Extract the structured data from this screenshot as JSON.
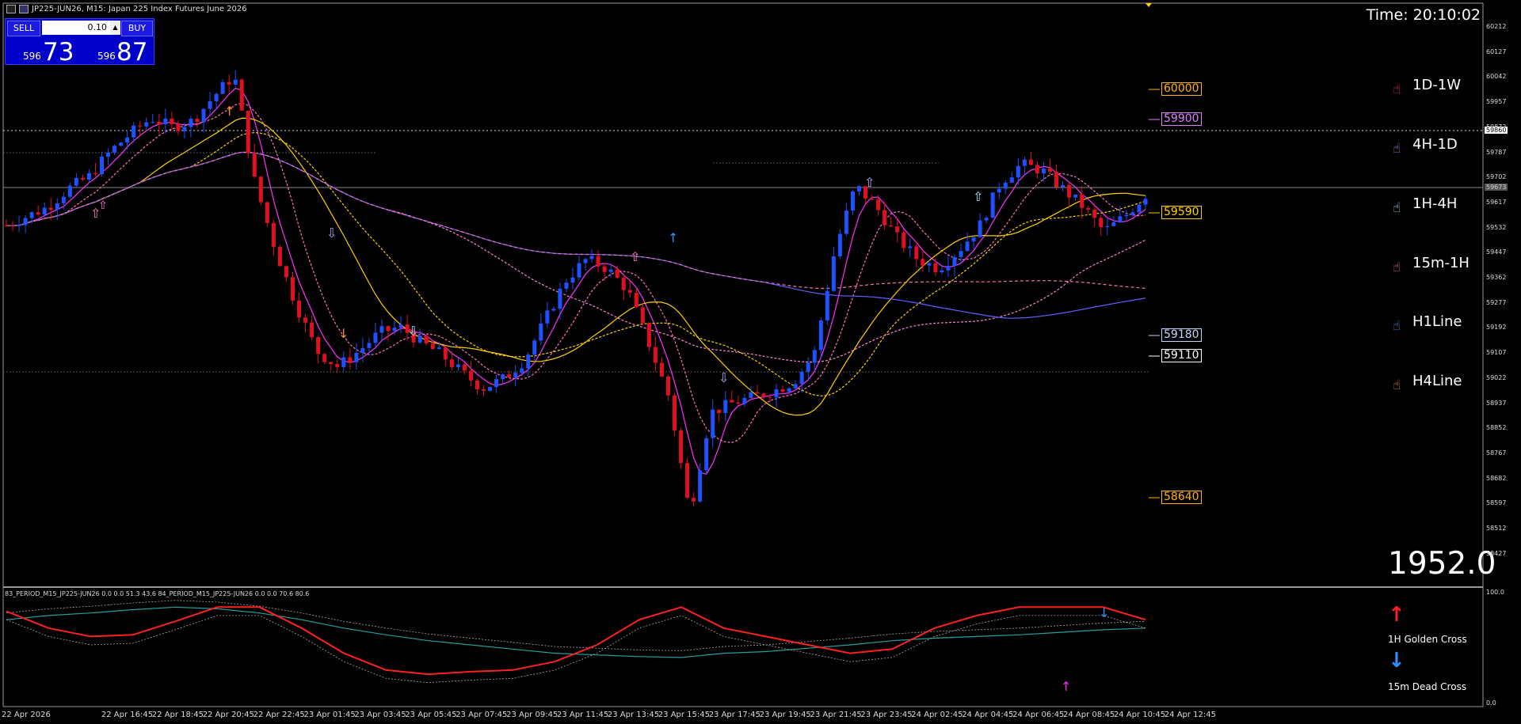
{
  "window": {
    "title": "JP225-JUN26, M15:  Japan 225 Index Futures June 2026"
  },
  "trade_panel": {
    "sell_label": "SELL",
    "buy_label": "BUY",
    "lot": "0.10",
    "sell_prefix": "596",
    "sell_big": "73",
    "buy_prefix": "596",
    "buy_big": "87"
  },
  "clock": {
    "text": "Time: 20:10:02"
  },
  "big_value": "1952.0",
  "timeframes": [
    {
      "label": "1D-1W",
      "icon": "pointing-hand-icon",
      "color": "#ff3050"
    },
    {
      "label": "4H-1D",
      "icon": "pointing-hand-icon",
      "color": "#c080ff"
    },
    {
      "label": "1H-4H",
      "icon": "pointing-hand-icon",
      "color": "#a0e0ff"
    },
    {
      "label": "15m-1H",
      "icon": "pointing-hand-icon",
      "color": "#ff70c0"
    },
    {
      "label": "H1Line",
      "icon": "pointing-hand-icon",
      "color": "#5090ff"
    },
    {
      "label": "H4Line",
      "icon": "pointing-hand-icon",
      "color": "#ff9020"
    }
  ],
  "levels": [
    {
      "label": "60000",
      "color": "#ffb020"
    },
    {
      "label": "59900",
      "color": "#e080ff"
    },
    {
      "label": "59590",
      "color": "#ffd000"
    },
    {
      "label": "59180",
      "color": "#c0d8ff"
    },
    {
      "label": "59110",
      "color": "#ffffff"
    },
    {
      "label": "58640",
      "color": "#ffb020"
    }
  ],
  "price_axis": [
    "60212",
    "60127",
    "60042",
    "59957",
    "59872",
    "59787",
    "59702",
    "59617",
    "59532",
    "59447",
    "59362",
    "59277",
    "59192",
    "59107",
    "59022",
    "58937",
    "58852",
    "58767",
    "58682",
    "58597",
    "58512",
    "58427"
  ],
  "price_tags": {
    "bid_line": "59860",
    "current": "59673"
  },
  "time_axis": [
    "22 Apr 2026",
    "22 Apr 16:45",
    "22 Apr 18:45",
    "22 Apr 20:45",
    "22 Apr 22:45",
    "23 Apr 01:45",
    "23 Apr 03:45",
    "23 Apr 05:45",
    "23 Apr 07:45",
    "23 Apr 09:45",
    "23 Apr 11:45",
    "23 Apr 13:45",
    "23 Apr 15:45",
    "23 Apr 17:45",
    "23 Apr 19:45",
    "23 Apr 21:45",
    "23 Apr 23:45",
    "24 Apr 02:45",
    "24 Apr 04:45",
    "24 Apr 06:45",
    "24 Apr 08:45",
    "24 Apr 10:45",
    "24 Apr 12:45"
  ],
  "indicator": {
    "title": "83_PERIOD_M15_JP225-JUN26 0.0 0.0 51.3 43.6 84_PERIOD_M15_JP225-JUN26 0.0 0.0 70.6 80.6",
    "scale_top": "100.0",
    "scale_bottom": "0.0"
  },
  "signals": [
    {
      "label": "1H Golden Cross",
      "icon": "arrow-up-icon",
      "color": "#ff2020"
    },
    {
      "label": "15m Dead Cross",
      "icon": "arrow-down-icon",
      "color": "#3090ff"
    }
  ],
  "colors": {
    "bull_candle": "#2050ff",
    "bear_candle": "#e01020",
    "background": "#000000"
  },
  "chart_data": {
    "type": "candlestick",
    "title": "JP225-JUN26, M15:  Japan 225 Index Futures June 2026",
    "ylim": [
      58400,
      60230
    ],
    "grid": false,
    "candle_count": 180,
    "approx_close_path": [
      59560,
      59590,
      59620,
      59680,
      59720,
      59800,
      59860,
      59910,
      59880,
      59900,
      59980,
      60050,
      59700,
      59480,
      59300,
      59150,
      59100,
      59150,
      59210,
      59230,
      59180,
      59140,
      59080,
      59030,
      59060,
      59120,
      59250,
      59380,
      59450,
      59420,
      59350,
      59180,
      59000,
      58620,
      58950,
      58980,
      59000,
      59020,
      59050,
      59140,
      59480,
      59690,
      59620,
      59520,
      59450,
      59420,
      59480,
      59560,
      59700,
      59760,
      59740,
      59680,
      59620,
      59540,
      59590,
      59660
    ]
  }
}
